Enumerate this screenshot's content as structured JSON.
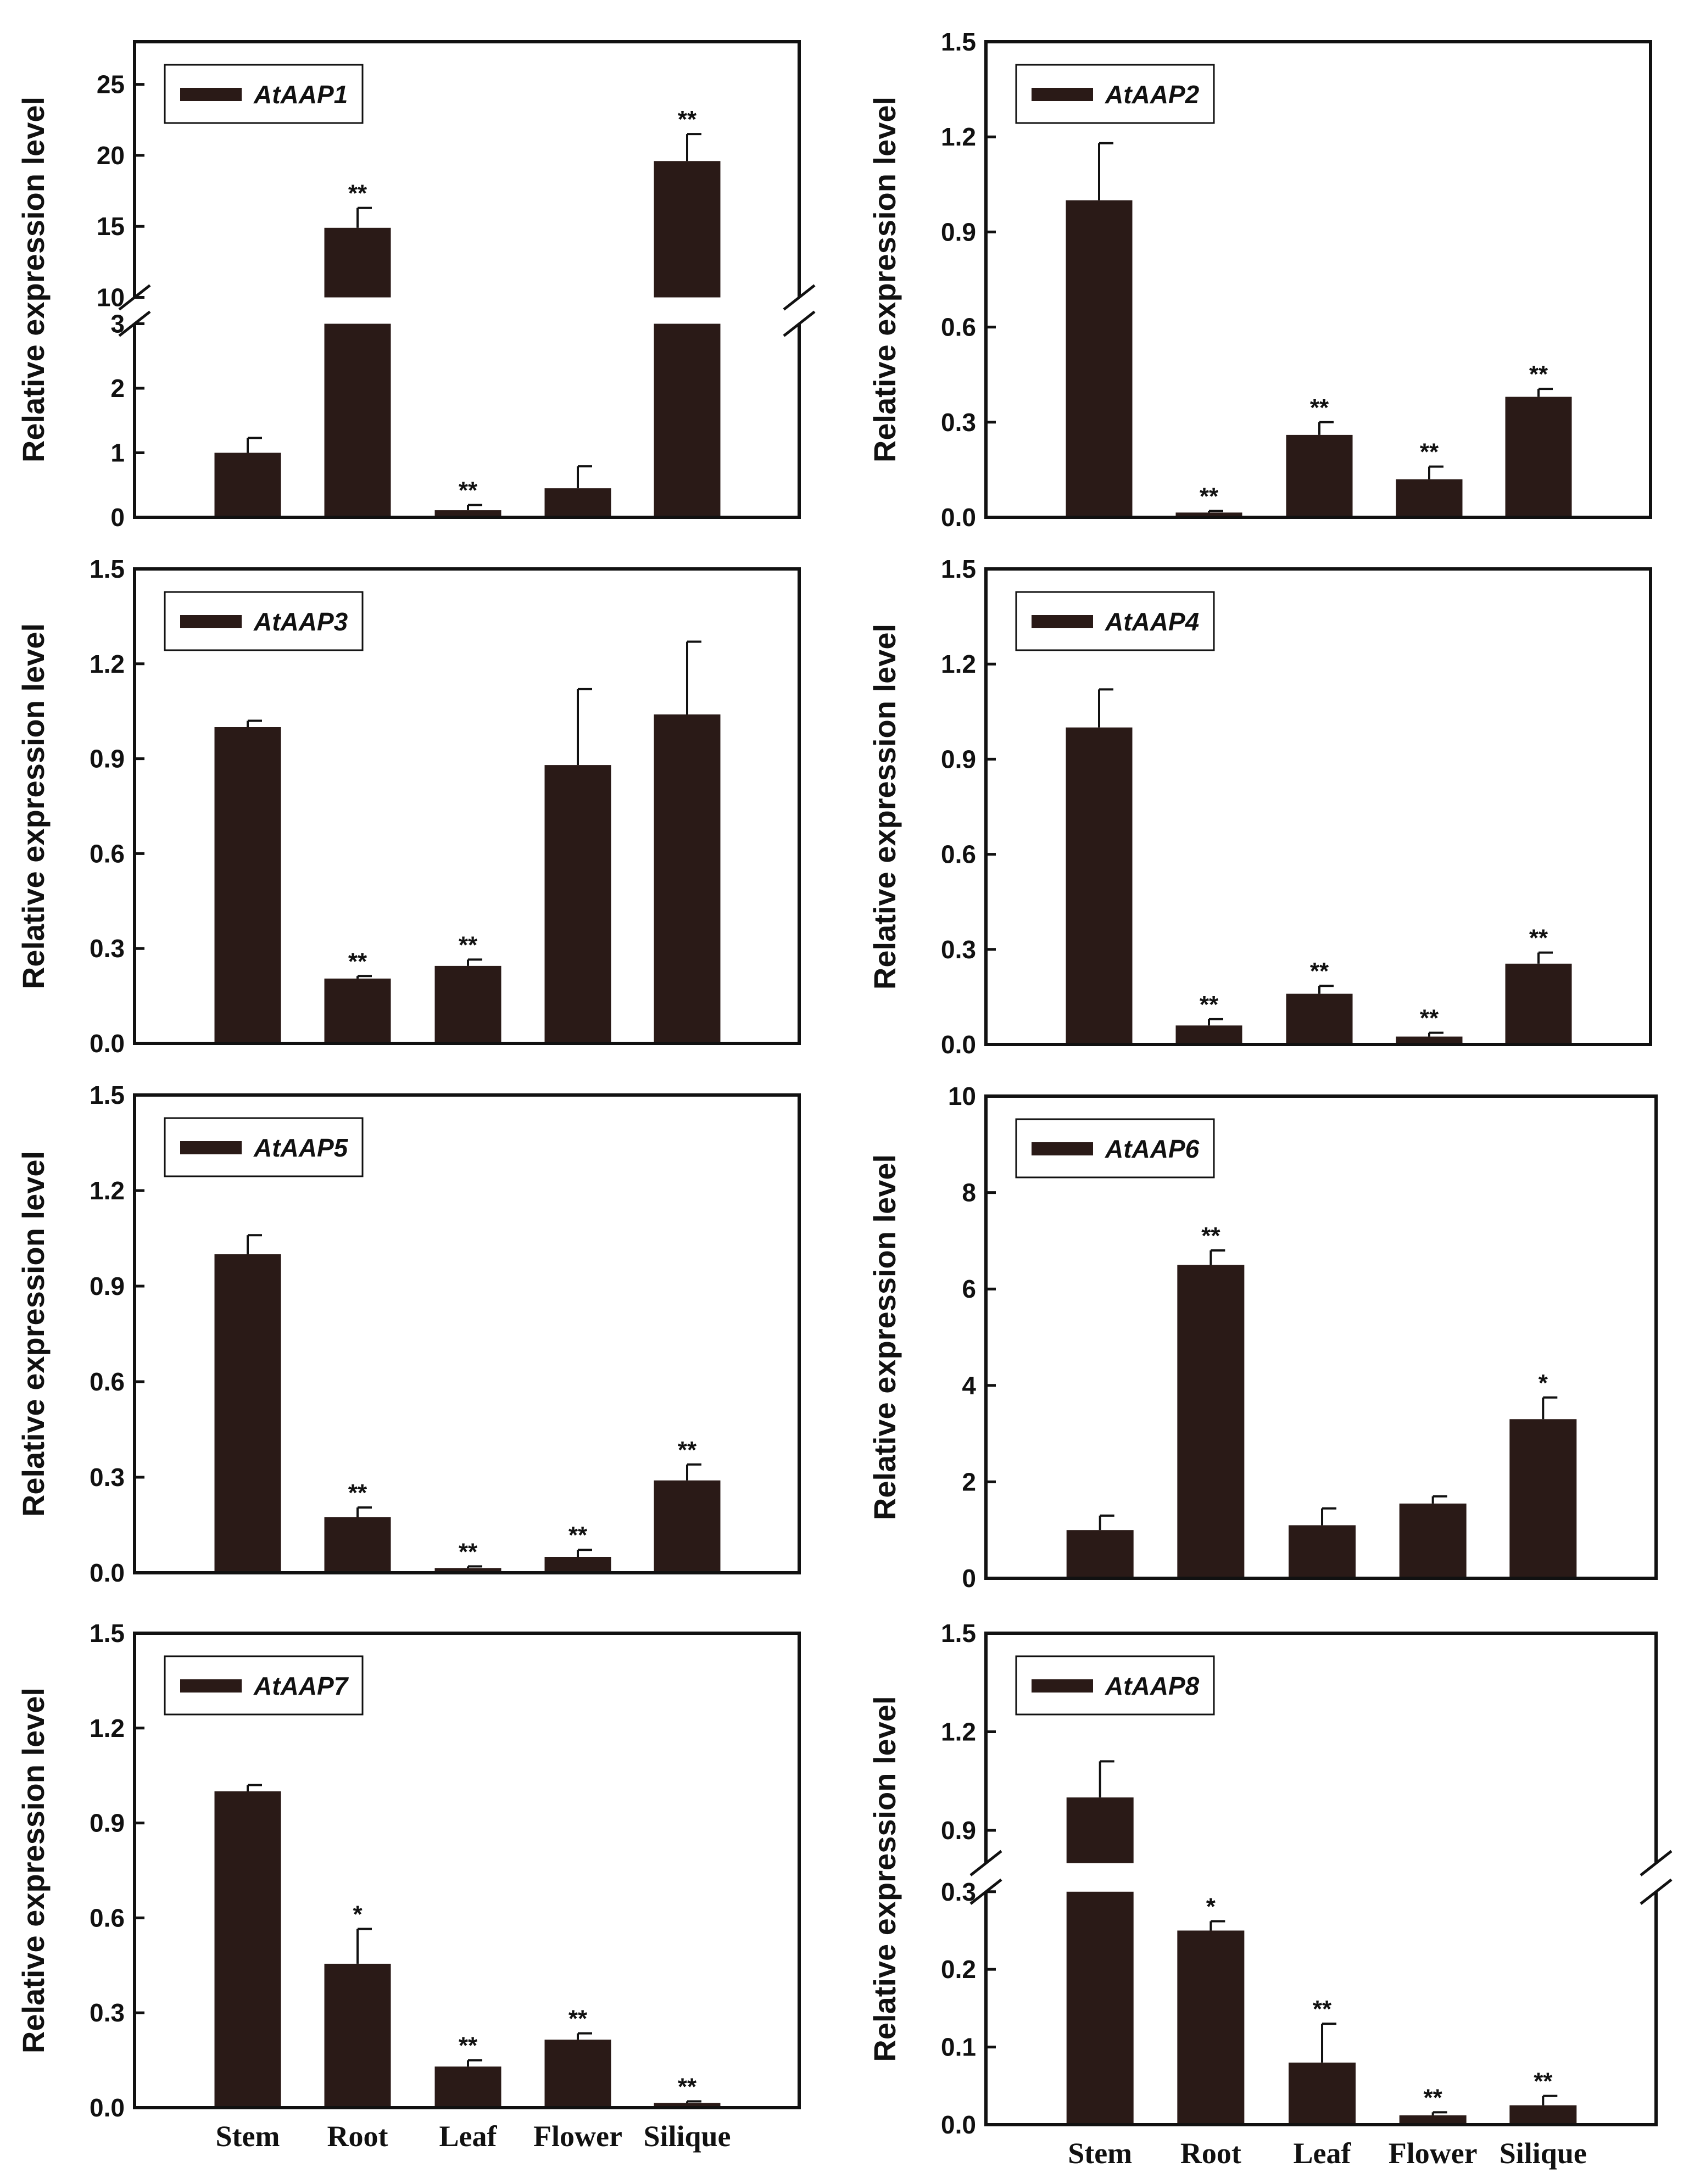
{
  "figure": {
    "colors": {
      "bar": "#2a1a17",
      "axis": "#111111",
      "background": "#ffffff"
    },
    "categories": [
      "Stem",
      "Root",
      "Leaf",
      "Flower",
      "Silique"
    ]
  },
  "chart_data": [
    {
      "type": "bar",
      "gene": "AtAAP1",
      "legend": "AtAAP1",
      "ylabel": "Relative expression level",
      "broken_axis": true,
      "categories": [
        "Stem",
        "Root",
        "Leaf",
        "Flower",
        "Silique"
      ],
      "values": [
        1.0,
        14.9,
        0.11,
        0.45,
        19.6
      ],
      "errors": [
        0.23,
        1.4,
        0.08,
        0.34,
        1.9
      ],
      "significance": [
        "",
        "**",
        "**",
        "",
        "**"
      ],
      "lower_range": [
        0,
        3
      ],
      "lower_ticks": [
        "0",
        "1",
        "2",
        "3"
      ],
      "upper_range": [
        10,
        28
      ],
      "upper_ticks": [
        "10",
        "15",
        "20",
        "25"
      ]
    },
    {
      "type": "bar",
      "gene": "AtAAP2",
      "legend": "AtAAP2",
      "ylabel": "Relative expression level",
      "categories": [
        "Stem",
        "Root",
        "Leaf",
        "Flower",
        "Silique"
      ],
      "values": [
        1.0,
        0.015,
        0.26,
        0.12,
        0.38
      ],
      "errors": [
        0.18,
        0.005,
        0.04,
        0.04,
        0.025
      ],
      "significance": [
        "",
        "**",
        "**",
        "**",
        "**"
      ],
      "ylim": [
        0,
        1.5
      ],
      "yticks": [
        "0.0",
        "0.3",
        "0.6",
        "0.9",
        "1.2",
        "1.5"
      ]
    },
    {
      "type": "bar",
      "gene": "AtAAP3",
      "legend": "AtAAP3",
      "ylabel": "Relative expression level",
      "categories": [
        "Stem",
        "Root",
        "Leaf",
        "Flower",
        "Silique"
      ],
      "values": [
        1.0,
        0.205,
        0.245,
        0.88,
        1.04
      ],
      "errors": [
        0.02,
        0.008,
        0.02,
        0.24,
        0.23
      ],
      "significance": [
        "",
        "**",
        "**",
        "",
        ""
      ],
      "ylim": [
        0,
        1.5
      ],
      "yticks": [
        "0.0",
        "0.3",
        "0.6",
        "0.9",
        "1.2",
        "1.5"
      ]
    },
    {
      "type": "bar",
      "gene": "AtAAP4",
      "legend": "AtAAP4",
      "ylabel": "Relative expression level",
      "categories": [
        "Stem",
        "Root",
        "Leaf",
        "Flower",
        "Silique"
      ],
      "values": [
        1.0,
        0.06,
        0.16,
        0.025,
        0.255
      ],
      "errors": [
        0.12,
        0.02,
        0.025,
        0.012,
        0.035
      ],
      "significance": [
        "",
        "**",
        "**",
        "**",
        "**"
      ],
      "ylim": [
        0,
        1.5
      ],
      "yticks": [
        "0.0",
        "0.3",
        "0.6",
        "0.9",
        "1.2",
        "1.5"
      ]
    },
    {
      "type": "bar",
      "gene": "AtAAP5",
      "legend": "AtAAP5",
      "ylabel": "Relative expression level",
      "categories": [
        "Stem",
        "Root",
        "Leaf",
        "Flower",
        "Silique"
      ],
      "values": [
        1.0,
        0.175,
        0.015,
        0.05,
        0.29
      ],
      "errors": [
        0.06,
        0.03,
        0.005,
        0.022,
        0.05
      ],
      "significance": [
        "",
        "**",
        "**",
        "**",
        "**"
      ],
      "ylim": [
        0,
        1.5
      ],
      "yticks": [
        "0.0",
        "0.3",
        "0.6",
        "0.9",
        "1.2",
        "1.5"
      ]
    },
    {
      "type": "bar",
      "gene": "AtAAP6",
      "legend": "AtAAP6",
      "ylabel": "Relative expression level",
      "categories": [
        "Stem",
        "Root",
        "Leaf",
        "Flower",
        "Silique"
      ],
      "values": [
        1.0,
        6.5,
        1.1,
        1.55,
        3.3
      ],
      "errors": [
        0.3,
        0.3,
        0.35,
        0.15,
        0.45
      ],
      "significance": [
        "",
        "**",
        "",
        "",
        "*"
      ],
      "ylim": [
        0,
        10
      ],
      "yticks": [
        "0",
        "2",
        "4",
        "6",
        "8",
        "10"
      ]
    },
    {
      "type": "bar",
      "gene": "AtAAP7",
      "legend": "AtAAP7",
      "ylabel": "Relative expression level",
      "categories": [
        "Stem",
        "Root",
        "Leaf",
        "Flower",
        "Silique"
      ],
      "values": [
        1.0,
        0.455,
        0.13,
        0.215,
        0.015
      ],
      "errors": [
        0.02,
        0.11,
        0.02,
        0.02,
        0.005
      ],
      "significance": [
        "",
        "*",
        "**",
        "**",
        "**"
      ],
      "ylim": [
        0,
        1.5
      ],
      "yticks": [
        "0.0",
        "0.3",
        "0.6",
        "0.9",
        "1.2",
        "1.5"
      ]
    },
    {
      "type": "bar",
      "gene": "AtAAP8",
      "legend": "AtAAP8",
      "ylabel": "Relative expression level",
      "broken_axis": true,
      "categories": [
        "Stem",
        "Root",
        "Leaf",
        "Flower",
        "Silique"
      ],
      "values": [
        1.0,
        0.25,
        0.08,
        0.012,
        0.025
      ],
      "errors": [
        0.11,
        0.012,
        0.05,
        0.004,
        0.012
      ],
      "significance": [
        "",
        "*",
        "**",
        "**",
        "**"
      ],
      "lower_range": [
        0,
        0.3
      ],
      "lower_ticks": [
        "0.0",
        "0.1",
        "0.2",
        "0.3"
      ],
      "upper_range": [
        0.8,
        1.5
      ],
      "upper_ticks": [
        "0.9",
        "1.2",
        "1.5"
      ]
    }
  ]
}
